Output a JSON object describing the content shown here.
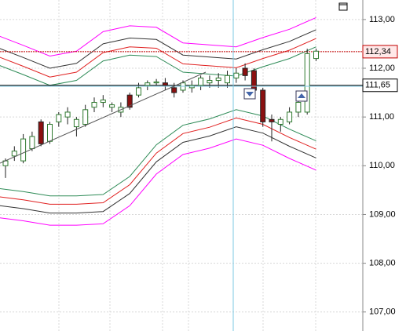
{
  "chart_data": {
    "type": "candlestick",
    "ylim": [
      106.61,
      113.4
    ],
    "yticks": [
      {
        "value": 113,
        "label": "113,00"
      },
      {
        "value": 112,
        "label": "112,00"
      },
      {
        "value": 111,
        "label": "111,00"
      },
      {
        "value": 110,
        "label": "110,00"
      },
      {
        "value": 109,
        "label": "109,00"
      },
      {
        "value": 108,
        "label": "108,00"
      },
      {
        "value": 107,
        "label": "107,00"
      }
    ],
    "grid": true,
    "up_color": "#2f7a2f",
    "down_color": "#8b1010",
    "open": [
      110.0,
      110.2,
      110.1,
      110.35,
      110.9,
      110.5,
      110.9,
      111.0,
      110.8,
      110.85,
      111.2,
      111.3,
      111.2,
      111.1,
      111.45,
      111.45,
      111.65,
      111.7,
      111.7,
      111.6,
      111.55,
      111.6,
      111.65,
      111.7,
      111.75,
      111.7,
      111.8,
      112.0,
      111.95,
      111.55,
      110.95,
      110.85,
      110.9,
      111.1,
      111.1,
      112.2
    ],
    "high": [
      110.15,
      110.4,
      110.65,
      110.7,
      110.95,
      110.9,
      111.1,
      111.2,
      111.0,
      111.25,
      111.4,
      111.45,
      111.3,
      111.3,
      111.5,
      111.7,
      111.75,
      111.78,
      111.8,
      111.7,
      111.75,
      111.75,
      111.85,
      111.85,
      111.9,
      111.95,
      112.0,
      112.1,
      112.0,
      111.6,
      111.05,
      111.0,
      111.2,
      111.4,
      112.4,
      112.4
    ],
    "low": [
      109.75,
      110.1,
      110.05,
      110.3,
      110.4,
      110.45,
      110.8,
      110.85,
      110.6,
      110.8,
      111.1,
      111.2,
      111.1,
      111.0,
      111.15,
      111.4,
      111.55,
      111.65,
      111.55,
      111.4,
      111.5,
      111.5,
      111.55,
      111.6,
      111.6,
      111.6,
      111.7,
      111.75,
      111.5,
      110.8,
      110.5,
      110.7,
      110.85,
      111.0,
      111.05,
      112.15
    ],
    "close": [
      110.1,
      110.3,
      110.55,
      110.6,
      110.45,
      110.85,
      111.05,
      111.1,
      110.95,
      111.15,
      111.3,
      111.35,
      111.25,
      111.2,
      111.2,
      111.6,
      111.7,
      111.72,
      111.65,
      111.5,
      111.7,
      111.65,
      111.8,
      111.75,
      111.8,
      111.85,
      111.9,
      111.85,
      111.55,
      110.9,
      110.9,
      110.95,
      111.1,
      111.3,
      112.3,
      112.35
    ],
    "bands": {
      "x": [
        0,
        3,
        6,
        9,
        12,
        15,
        18,
        21,
        24,
        27,
        30,
        33,
        36
      ],
      "series": [
        {
          "color": "#ff00ff",
          "values": [
            112.68,
            112.47,
            112.25,
            112.35,
            112.75,
            112.87,
            112.84,
            112.52,
            112.48,
            112.44,
            112.63,
            112.8,
            113.04
          ]
        },
        {
          "color": "#333333",
          "values": [
            112.43,
            112.22,
            112.0,
            112.1,
            112.5,
            112.62,
            112.59,
            112.27,
            112.23,
            112.19,
            112.38,
            112.55,
            112.79
          ]
        },
        {
          "color": "#e02020",
          "values": [
            112.25,
            112.04,
            111.82,
            111.92,
            112.32,
            112.44,
            112.41,
            112.09,
            112.05,
            112.01,
            112.2,
            112.37,
            112.61
          ]
        },
        {
          "color": "#2e8b57",
          "values": [
            112.08,
            111.87,
            111.65,
            111.75,
            112.15,
            112.27,
            112.24,
            111.92,
            111.88,
            111.84,
            112.03,
            112.2,
            112.44
          ]
        },
        {
          "color": "#2e8b57",
          "values": [
            109.54,
            109.47,
            109.38,
            109.38,
            109.41,
            109.78,
            110.43,
            110.83,
            110.96,
            111.15,
            111.02,
            110.75,
            110.51
          ]
        },
        {
          "color": "#e02020",
          "values": [
            109.37,
            109.3,
            109.21,
            109.21,
            109.24,
            109.61,
            110.26,
            110.66,
            110.79,
            110.98,
            110.85,
            110.58,
            110.34
          ]
        },
        {
          "color": "#333333",
          "values": [
            109.19,
            109.12,
            109.03,
            109.03,
            109.06,
            109.43,
            110.08,
            110.48,
            110.61,
            110.8,
            110.67,
            110.4,
            110.16
          ]
        },
        {
          "color": "#ff00ff",
          "values": [
            108.94,
            108.87,
            108.78,
            108.78,
            108.81,
            109.18,
            109.83,
            110.23,
            110.36,
            110.55,
            110.42,
            110.15,
            109.91
          ]
        }
      ]
    },
    "price_lines": [
      {
        "value": 112.34,
        "label": "112,34",
        "color": "#c00000"
      },
      {
        "value": 111.65,
        "label": "111,65",
        "color": "#000000"
      }
    ]
  }
}
